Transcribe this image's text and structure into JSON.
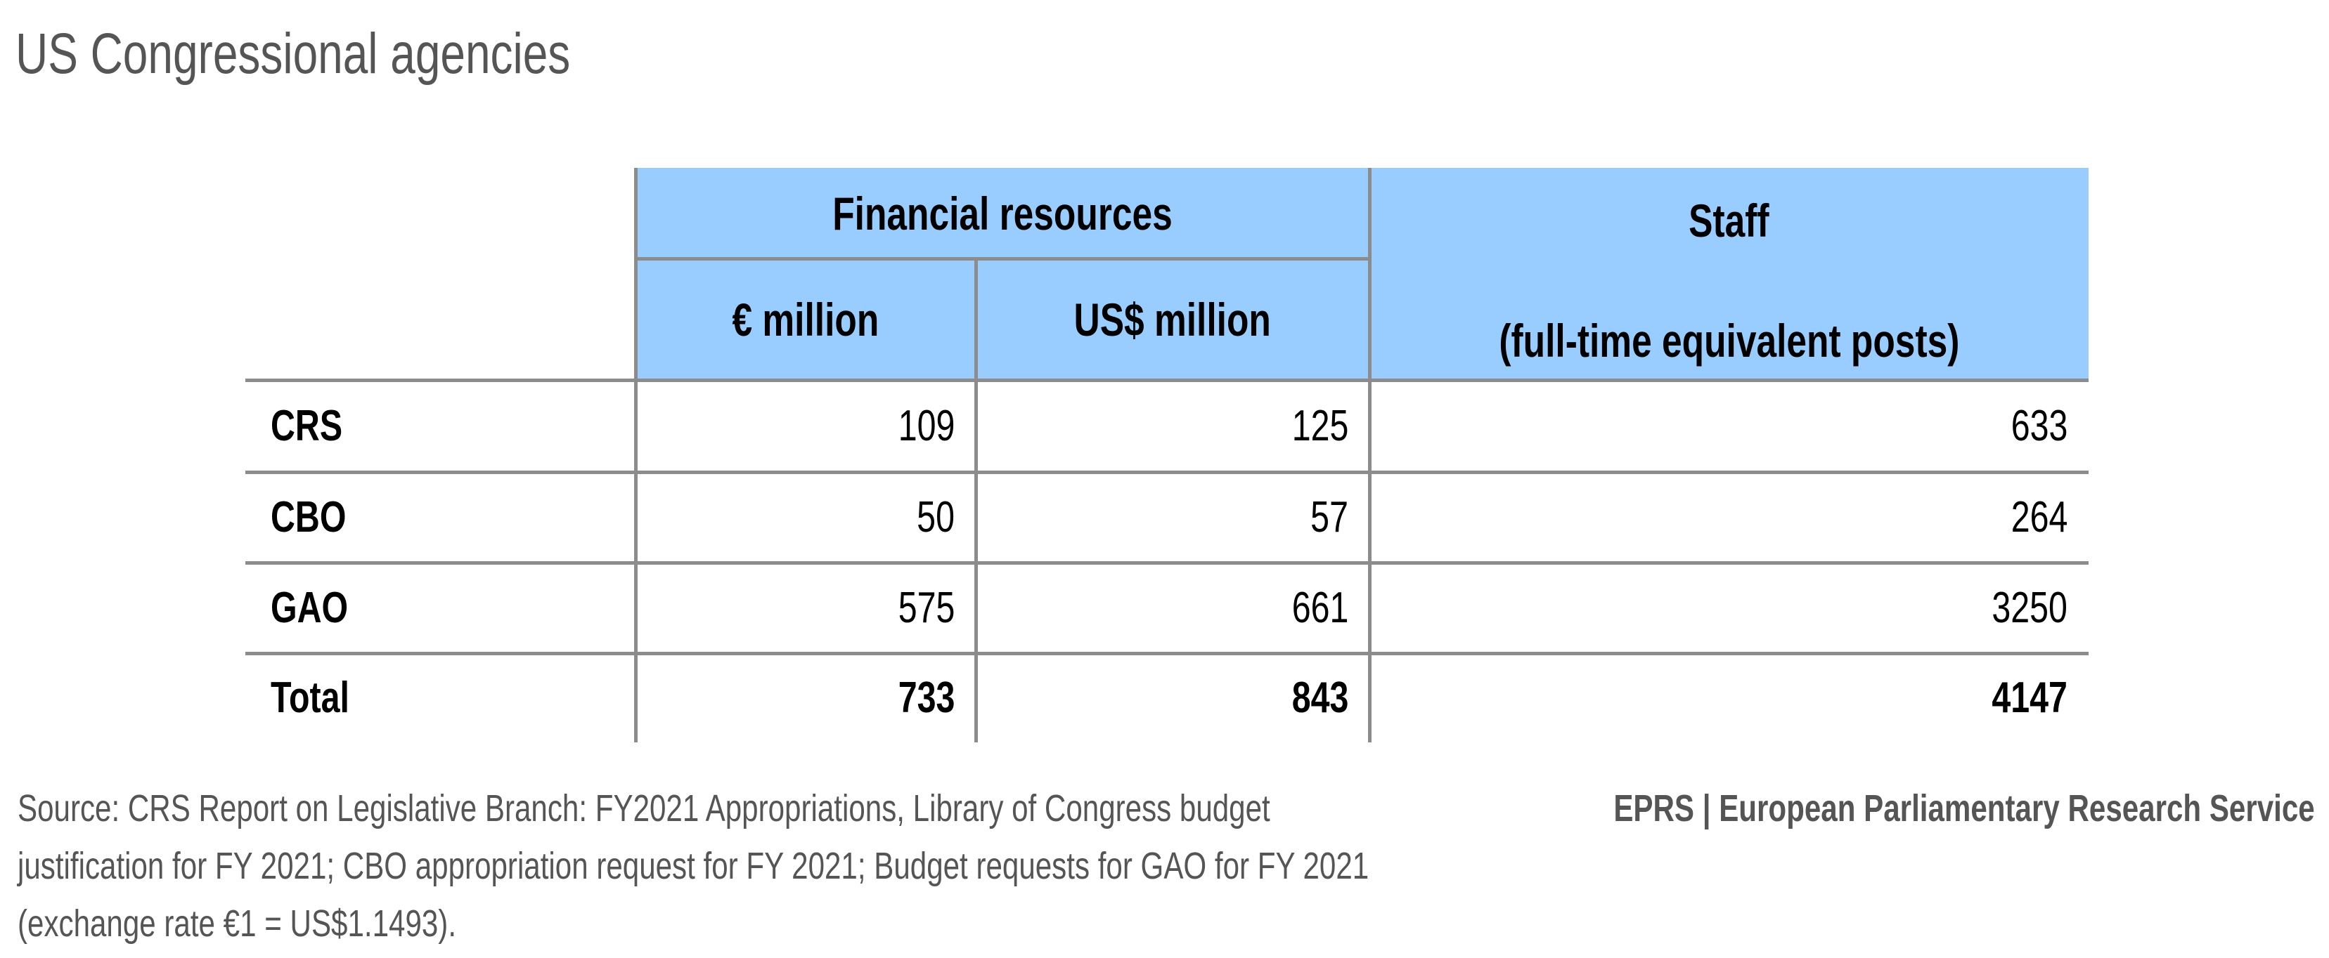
{
  "title": "US Congressional agencies",
  "table": {
    "header": {
      "financial": "Financial resources",
      "eur": "€ million",
      "usd": "US$ million",
      "staff": "Staff",
      "staff_sub": "(full-time equivalent posts)"
    },
    "rows": [
      {
        "label": "CRS",
        "eur": "109",
        "usd": "125",
        "staff": "633"
      },
      {
        "label": "CBO",
        "eur": "50",
        "usd": "57",
        "staff": "264"
      },
      {
        "label": "GAO",
        "eur": "575",
        "usd": "661",
        "staff": "3250"
      }
    ],
    "total": {
      "label": "Total",
      "eur": "733",
      "usd": "843",
      "staff": "4147"
    }
  },
  "source": [
    "Source: CRS Report on Legislative Branch: FY2021 Appropriations, Library of Congress budget",
    "justification for FY 2021; CBO appropriation request for FY 2021; Budget requests for GAO for FY 2021",
    "(exchange rate €1 = US$1.1493)."
  ],
  "credit": "EPRS | European Parliamentary Research Service",
  "colors": {
    "header_bg": "#99ccff",
    "grid": "#8c8c8c",
    "muted_text": "#555555"
  }
}
